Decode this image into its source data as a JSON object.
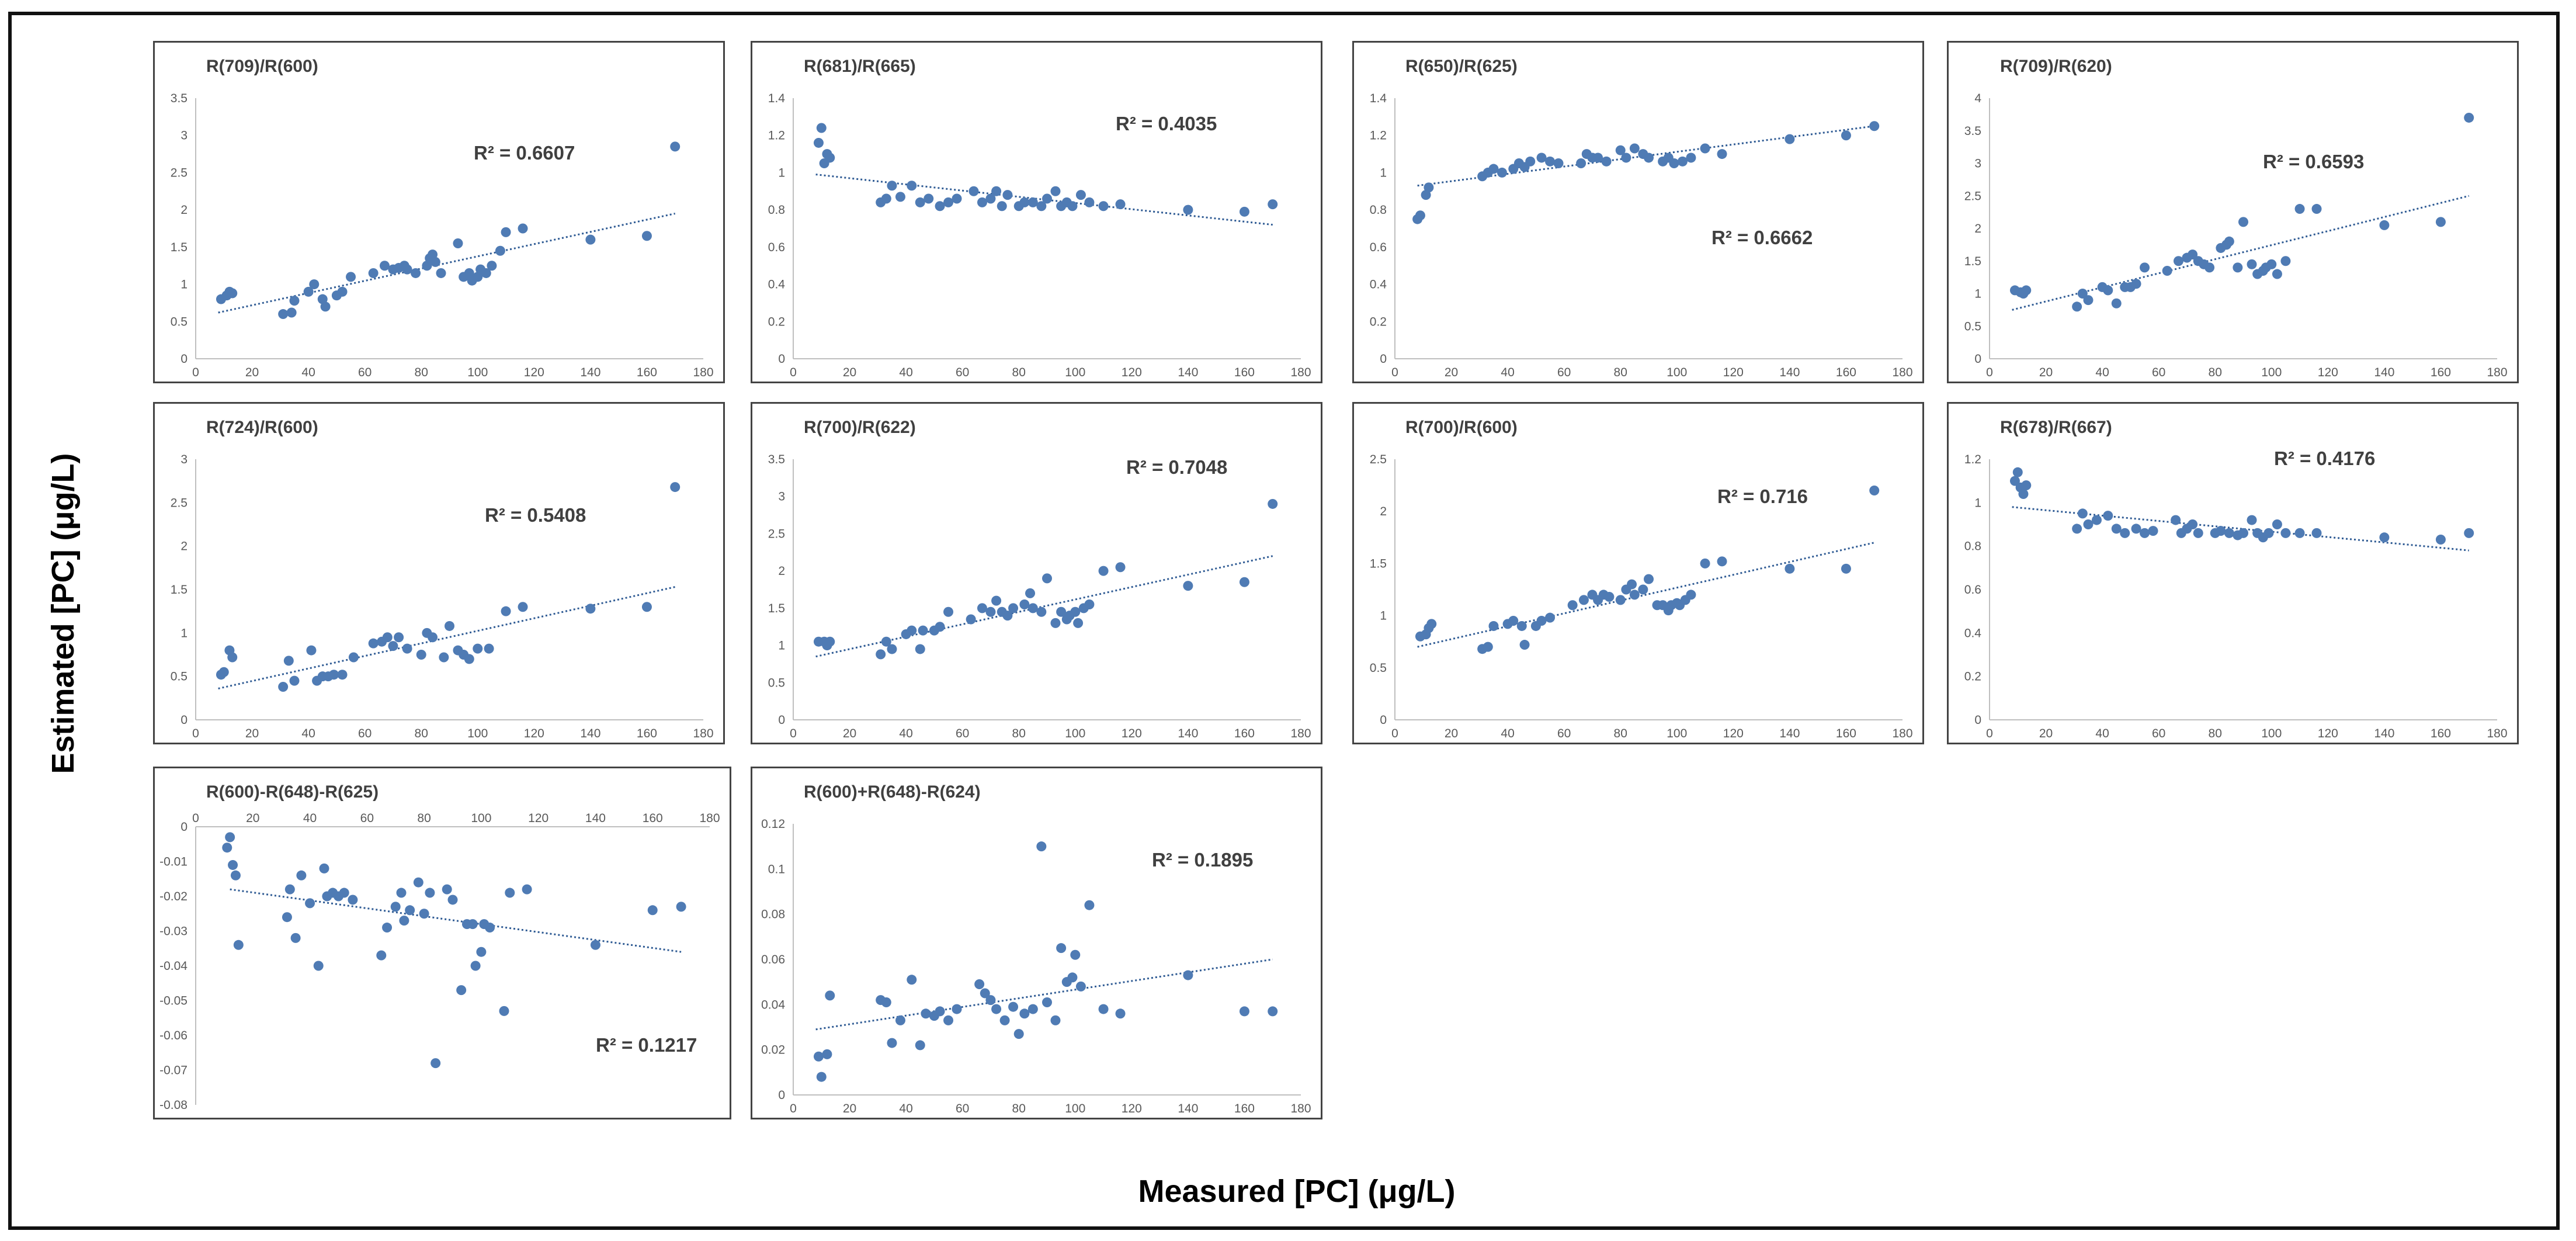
{
  "figure": {
    "xlabel": "Measured [PC] (μg/L)",
    "ylabel": "Estimated [PC] (μg/L)",
    "marker_color": "#4f7bb4",
    "trend_color": "#2f5b94"
  },
  "chart_data": [
    {
      "type": "scatter",
      "title": "R(709)/R(600)",
      "r2_label": "R² = 0.6607",
      "xlim": [
        0,
        180
      ],
      "xticks": [
        0,
        20,
        40,
        60,
        80,
        100,
        120,
        140,
        160,
        180
      ],
      "ylim": [
        0,
        3.5
      ],
      "yticks": [
        "0",
        "0.5",
        "1",
        "1.5",
        "2",
        "2.5",
        "3",
        "3.5"
      ],
      "trend": [
        [
          8,
          0.62
        ],
        [
          170,
          1.95
        ]
      ],
      "x": [
        9,
        11,
        12,
        13,
        31,
        34,
        35,
        40,
        42,
        45,
        46,
        50,
        52,
        55,
        63,
        67,
        70,
        72,
        74,
        75,
        78,
        82,
        83,
        84,
        85,
        87,
        93,
        95,
        97,
        98,
        100,
        101,
        103,
        105,
        108,
        110,
        116,
        140,
        160,
        170
      ],
      "y": [
        0.8,
        0.85,
        0.9,
        0.88,
        0.6,
        0.62,
        0.78,
        0.9,
        1.0,
        0.8,
        0.7,
        0.85,
        0.9,
        1.1,
        1.15,
        1.25,
        1.2,
        1.22,
        1.25,
        1.2,
        1.15,
        1.25,
        1.35,
        1.4,
        1.3,
        1.15,
        1.55,
        1.1,
        1.15,
        1.05,
        1.1,
        1.2,
        1.15,
        1.25,
        1.45,
        1.7,
        1.75,
        1.6,
        1.65,
        2.85
      ]
    },
    {
      "type": "scatter",
      "title": "R(681)/R(665)",
      "r2_label": "R² = 0.4035",
      "xlim": [
        0,
        180
      ],
      "xticks": [
        0,
        20,
        40,
        60,
        80,
        100,
        120,
        140,
        160,
        180
      ],
      "ylim": [
        0,
        1.4
      ],
      "yticks": [
        "0",
        "0.2",
        "0.4",
        "0.6",
        "0.8",
        "1",
        "1.2",
        "1.4"
      ],
      "trend": [
        [
          8,
          0.99
        ],
        [
          170,
          0.72
        ]
      ],
      "x": [
        9,
        10,
        11,
        12,
        13,
        31,
        33,
        35,
        38,
        42,
        45,
        48,
        52,
        55,
        58,
        64,
        67,
        70,
        72,
        74,
        76,
        80,
        82,
        85,
        88,
        90,
        93,
        95,
        97,
        99,
        102,
        105,
        110,
        116,
        140,
        160,
        170
      ],
      "y": [
        1.16,
        1.24,
        1.05,
        1.1,
        1.08,
        0.84,
        0.86,
        0.93,
        0.87,
        0.93,
        0.84,
        0.86,
        0.82,
        0.84,
        0.86,
        0.9,
        0.84,
        0.86,
        0.9,
        0.82,
        0.88,
        0.82,
        0.84,
        0.84,
        0.82,
        0.86,
        0.9,
        0.82,
        0.84,
        0.82,
        0.88,
        0.84,
        0.82,
        0.83,
        0.8,
        0.79,
        0.83
      ]
    },
    {
      "type": "scatter",
      "title": "R(650)/R(625)",
      "r2_label": "R² = 0.6662",
      "xlim": [
        0,
        180
      ],
      "xticks": [
        0,
        20,
        40,
        60,
        80,
        100,
        120,
        140,
        160,
        180
      ],
      "ylim": [
        0,
        1.4
      ],
      "yticks": [
        "0",
        "0.2",
        "0.4",
        "0.6",
        "0.8",
        "1",
        "1.2",
        "1.4"
      ],
      "trend": [
        [
          8,
          0.93
        ],
        [
          170,
          1.25
        ]
      ],
      "x": [
        8,
        9,
        11,
        12,
        31,
        33,
        35,
        38,
        42,
        44,
        46,
        48,
        52,
        55,
        58,
        66,
        68,
        70,
        72,
        75,
        80,
        82,
        85,
        88,
        90,
        95,
        97,
        99,
        102,
        105,
        110,
        116,
        140,
        160,
        170
      ],
      "y": [
        0.75,
        0.77,
        0.88,
        0.92,
        0.98,
        1.0,
        1.02,
        1.0,
        1.02,
        1.05,
        1.03,
        1.06,
        1.08,
        1.06,
        1.05,
        1.05,
        1.1,
        1.08,
        1.08,
        1.06,
        1.12,
        1.08,
        1.13,
        1.1,
        1.08,
        1.06,
        1.08,
        1.05,
        1.06,
        1.08,
        1.13,
        1.1,
        1.18,
        1.2,
        1.25
      ]
    },
    {
      "type": "scatter",
      "title": "R(709)/R(620)",
      "r2_label": "R² = 0.6593",
      "xlim": [
        0,
        180
      ],
      "xticks": [
        0,
        20,
        40,
        60,
        80,
        100,
        120,
        140,
        160,
        180
      ],
      "ylim": [
        0,
        4
      ],
      "yticks": [
        "0",
        "0.5",
        "1",
        "1.5",
        "2",
        "2.5",
        "3",
        "3.5",
        "4"
      ],
      "trend": [
        [
          8,
          0.75
        ],
        [
          170,
          2.5
        ]
      ],
      "x": [
        9,
        11,
        12,
        13,
        31,
        33,
        35,
        40,
        42,
        45,
        48,
        50,
        52,
        55,
        63,
        67,
        70,
        72,
        74,
        76,
        78,
        82,
        84,
        85,
        88,
        90,
        93,
        95,
        97,
        98,
        100,
        102,
        105,
        110,
        116,
        140,
        160,
        170
      ],
      "y": [
        1.05,
        1.02,
        1.0,
        1.05,
        0.8,
        1.0,
        0.9,
        1.1,
        1.05,
        0.85,
        1.1,
        1.1,
        1.15,
        1.4,
        1.35,
        1.5,
        1.55,
        1.6,
        1.5,
        1.45,
        1.4,
        1.7,
        1.75,
        1.8,
        1.4,
        2.1,
        1.45,
        1.3,
        1.35,
        1.4,
        1.45,
        1.3,
        1.5,
        2.3,
        2.3,
        2.05,
        2.1,
        3.7
      ]
    },
    {
      "type": "scatter",
      "title": "R(724)/R(600)",
      "r2_label": "R² = 0.5408",
      "xlim": [
        0,
        180
      ],
      "xticks": [
        0,
        20,
        40,
        60,
        80,
        100,
        120,
        140,
        160,
        180
      ],
      "ylim": [
        0,
        3
      ],
      "yticks": [
        "0",
        "0.5",
        "1",
        "1.5",
        "2",
        "2.5",
        "3"
      ],
      "trend": [
        [
          8,
          0.36
        ],
        [
          170,
          1.53
        ]
      ],
      "x": [
        9,
        10,
        12,
        13,
        31,
        33,
        35,
        41,
        43,
        45,
        47,
        49,
        52,
        56,
        63,
        66,
        68,
        70,
        72,
        75,
        80,
        82,
        84,
        88,
        90,
        93,
        95,
        97,
        100,
        104,
        110,
        116,
        140,
        160,
        170
      ],
      "y": [
        0.52,
        0.55,
        0.8,
        0.72,
        0.38,
        0.68,
        0.45,
        0.8,
        0.45,
        0.5,
        0.5,
        0.52,
        0.52,
        0.72,
        0.88,
        0.9,
        0.95,
        0.85,
        0.95,
        0.82,
        0.75,
        1.0,
        0.95,
        0.72,
        1.08,
        0.8,
        0.75,
        0.7,
        0.82,
        0.82,
        1.25,
        1.3,
        1.28,
        1.3,
        2.68
      ]
    },
    {
      "type": "scatter",
      "title": "R(700)/R(622)",
      "r2_label": "R² = 0.7048",
      "xlim": [
        0,
        180
      ],
      "xticks": [
        0,
        20,
        40,
        60,
        80,
        100,
        120,
        140,
        160,
        180
      ],
      "ylim": [
        0,
        3.5
      ],
      "yticks": [
        "0",
        "0.5",
        "1",
        "1.5",
        "2",
        "2.5",
        "3",
        "3.5"
      ],
      "trend": [
        [
          8,
          0.85
        ],
        [
          170,
          2.2
        ]
      ],
      "x": [
        9,
        11,
        12,
        13,
        31,
        33,
        35,
        40,
        42,
        45,
        46,
        50,
        52,
        55,
        63,
        67,
        70,
        72,
        74,
        76,
        78,
        82,
        84,
        85,
        88,
        90,
        93,
        95,
        97,
        98,
        100,
        101,
        103,
        105,
        110,
        116,
        140,
        160,
        170
      ],
      "y": [
        1.05,
        1.05,
        1.0,
        1.05,
        0.88,
        1.05,
        0.95,
        1.15,
        1.2,
        0.95,
        1.2,
        1.2,
        1.25,
        1.45,
        1.35,
        1.5,
        1.45,
        1.6,
        1.45,
        1.4,
        1.5,
        1.55,
        1.7,
        1.5,
        1.45,
        1.9,
        1.3,
        1.45,
        1.35,
        1.4,
        1.45,
        1.3,
        1.5,
        1.55,
        2.0,
        2.05,
        1.8,
        1.85,
        2.9
      ]
    },
    {
      "type": "scatter",
      "title": "R(700)/R(600)",
      "r2_label": "R² = 0.716",
      "xlim": [
        0,
        180
      ],
      "xticks": [
        0,
        20,
        40,
        60,
        80,
        100,
        120,
        140,
        160,
        180
      ],
      "ylim": [
        0,
        2.5
      ],
      "yticks": [
        "0",
        "0.5",
        "1",
        "1.5",
        "2",
        "2.5"
      ],
      "trend": [
        [
          8,
          0.7
        ],
        [
          170,
          1.7
        ]
      ],
      "x": [
        9,
        11,
        12,
        13,
        31,
        33,
        35,
        40,
        42,
        45,
        46,
        50,
        52,
        55,
        63,
        67,
        70,
        72,
        74,
        76,
        80,
        82,
        84,
        85,
        88,
        90,
        93,
        95,
        97,
        98,
        100,
        101,
        103,
        105,
        110,
        116,
        140,
        160,
        170
      ],
      "y": [
        0.8,
        0.82,
        0.88,
        0.92,
        0.68,
        0.7,
        0.9,
        0.92,
        0.95,
        0.9,
        0.72,
        0.9,
        0.95,
        0.98,
        1.1,
        1.15,
        1.2,
        1.15,
        1.2,
        1.18,
        1.15,
        1.25,
        1.3,
        1.2,
        1.25,
        1.35,
        1.1,
        1.1,
        1.05,
        1.1,
        1.12,
        1.1,
        1.15,
        1.2,
        1.5,
        1.52,
        1.45,
        1.45,
        2.2
      ]
    },
    {
      "type": "scatter",
      "title": "R(678)/R(667)",
      "r2_label": "R² = 0.4176",
      "xlim": [
        0,
        180
      ],
      "xticks": [
        0,
        20,
        40,
        60,
        80,
        100,
        120,
        140,
        160,
        180
      ],
      "ylim": [
        0,
        1.2
      ],
      "yticks": [
        "0",
        "0.2",
        "0.4",
        "0.6",
        "0.8",
        "1",
        "1.2"
      ],
      "trend": [
        [
          8,
          0.98
        ],
        [
          170,
          0.78
        ]
      ],
      "x": [
        9,
        10,
        11,
        12,
        13,
        31,
        33,
        35,
        38,
        42,
        45,
        48,
        52,
        55,
        58,
        66,
        68,
        70,
        72,
        74,
        80,
        82,
        85,
        88,
        90,
        93,
        95,
        97,
        99,
        102,
        105,
        110,
        116,
        140,
        160,
        170
      ],
      "y": [
        1.1,
        1.14,
        1.07,
        1.04,
        1.08,
        0.88,
        0.95,
        0.9,
        0.92,
        0.94,
        0.88,
        0.86,
        0.88,
        0.86,
        0.87,
        0.92,
        0.86,
        0.88,
        0.9,
        0.86,
        0.86,
        0.87,
        0.86,
        0.85,
        0.86,
        0.92,
        0.86,
        0.84,
        0.86,
        0.9,
        0.86,
        0.86,
        0.86,
        0.84,
        0.83,
        0.86
      ]
    },
    {
      "type": "scatter",
      "title": "R(600)-R(648)-R(625)",
      "r2_label": "R² = 0.1217",
      "xlim": [
        0,
        180
      ],
      "xticks": [
        0,
        20,
        40,
        60,
        80,
        100,
        120,
        140,
        160,
        180
      ],
      "ylim": [
        -0.08,
        0
      ],
      "yticks": [
        "-0.08",
        "-0.07",
        "-0.06",
        "-0.05",
        "-0.04",
        "-0.03",
        "-0.02",
        "-0.01",
        "0"
      ],
      "trend": [
        [
          12,
          -0.018
        ],
        [
          170,
          -0.036
        ]
      ],
      "x": [
        11,
        12,
        13,
        14,
        15,
        32,
        33,
        35,
        37,
        40,
        43,
        45,
        46,
        48,
        50,
        52,
        55,
        65,
        67,
        70,
        72,
        73,
        75,
        78,
        80,
        82,
        84,
        88,
        90,
        93,
        95,
        97,
        98,
        100,
        101,
        103,
        108,
        110,
        116,
        140,
        160,
        170
      ],
      "y": [
        -0.006,
        -0.003,
        -0.011,
        -0.014,
        -0.034,
        -0.026,
        -0.018,
        -0.032,
        -0.014,
        -0.022,
        -0.04,
        -0.012,
        -0.02,
        -0.019,
        -0.02,
        -0.019,
        -0.021,
        -0.037,
        -0.029,
        -0.023,
        -0.019,
        -0.027,
        -0.024,
        -0.016,
        -0.025,
        -0.019,
        -0.068,
        -0.018,
        -0.021,
        -0.047,
        -0.028,
        -0.028,
        -0.04,
        -0.036,
        -0.028,
        -0.029,
        -0.053,
        -0.019,
        -0.018,
        -0.034,
        -0.024,
        -0.023
      ]
    },
    {
      "type": "scatter",
      "title": "R(600)+R(648)-R(624)",
      "r2_label": "R² = 0.1895",
      "xlim": [
        0,
        180
      ],
      "xticks": [
        0,
        20,
        40,
        60,
        80,
        100,
        120,
        140,
        160,
        180
      ],
      "ylim": [
        0,
        0.12
      ],
      "yticks": [
        "0",
        "0.02",
        "0.04",
        "0.06",
        "0.08",
        "0.1",
        "0.12"
      ],
      "trend": [
        [
          8,
          0.029
        ],
        [
          170,
          0.06
        ]
      ],
      "x": [
        9,
        10,
        12,
        13,
        31,
        33,
        35,
        38,
        42,
        45,
        47,
        50,
        52,
        55,
        58,
        66,
        68,
        70,
        72,
        75,
        78,
        80,
        82,
        85,
        88,
        90,
        93,
        95,
        97,
        99,
        100,
        102,
        105,
        110,
        116,
        140,
        160,
        170
      ],
      "y": [
        0.017,
        0.008,
        0.018,
        0.044,
        0.042,
        0.041,
        0.023,
        0.033,
        0.051,
        0.022,
        0.036,
        0.035,
        0.037,
        0.033,
        0.038,
        0.049,
        0.045,
        0.042,
        0.038,
        0.033,
        0.039,
        0.027,
        0.036,
        0.038,
        0.11,
        0.041,
        0.033,
        0.065,
        0.05,
        0.052,
        0.062,
        0.048,
        0.084,
        0.038,
        0.036,
        0.053,
        0.037,
        0.037
      ]
    }
  ]
}
